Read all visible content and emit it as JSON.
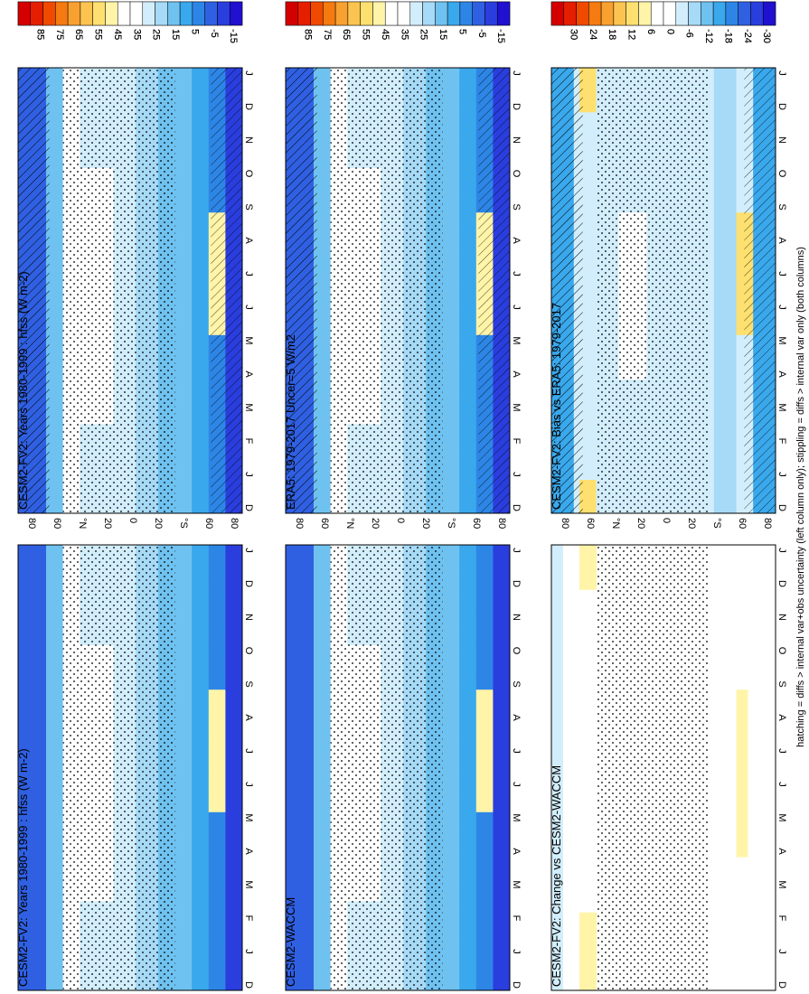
{
  "footnote": "hatching = diffs > internal var+obs uncertainty (left column only); stippling = diffs > internal var only (both columns)",
  "y_tick_labels": [
    "80",
    "60",
    "°N",
    "20",
    "0",
    "20",
    "°S",
    "60",
    "80"
  ],
  "x_tick_labels": [
    "D",
    "J",
    "F",
    "M",
    "A",
    "M",
    "J",
    "J",
    "A",
    "S",
    "O",
    "N",
    "D",
    "J"
  ],
  "chart_data": [
    {
      "type": "heatmap",
      "title": "CESM2-FV2: Years 1980-1999 : hfss (W m",
      "title_sup": "-2",
      "title_tail": ")",
      "x_tick_labels": [
        "D",
        "J",
        "F",
        "M",
        "A",
        "M",
        "J",
        "J",
        "A",
        "S",
        "O",
        "N",
        "D",
        "J"
      ],
      "y_tick_labels": [
        "80",
        "60",
        "°N",
        "20",
        "0",
        "20",
        "°S",
        "60",
        "80"
      ],
      "colorbar_labels": [
        "85",
        "75",
        "65",
        "55",
        "45",
        "35",
        "25",
        "15",
        "5",
        "-5",
        "-15"
      ],
      "hatching": true,
      "stippling": true
    },
    {
      "type": "heatmap",
      "title": "CESM2-FV2: Years 1980-1999 : hfss (W m",
      "title_sup": "-2",
      "title_tail": ")",
      "x_tick_labels": [
        "D",
        "J",
        "F",
        "M",
        "A",
        "M",
        "J",
        "J",
        "A",
        "S",
        "O",
        "N",
        "D",
        "J"
      ],
      "y_tick_labels": [
        "80",
        "60",
        "°N",
        "20",
        "0",
        "20",
        "°S",
        "60",
        "80"
      ],
      "colorbar_labels": [
        "85",
        "75",
        "65",
        "55",
        "45",
        "35",
        "25",
        "15",
        "5",
        "-5",
        "-15"
      ],
      "hatching": false,
      "stippling": true
    },
    {
      "type": "heatmap",
      "title": "ERA5: 1979-2017 Uncer=5 W/m2",
      "x_tick_labels": [
        "D",
        "J",
        "F",
        "M",
        "A",
        "M",
        "J",
        "J",
        "A",
        "S",
        "O",
        "N",
        "D",
        "J"
      ],
      "y_tick_labels": [
        "80",
        "60",
        "°N",
        "20",
        "0",
        "20",
        "°S",
        "60",
        "80"
      ],
      "colorbar_labels": [
        "85",
        "75",
        "65",
        "55",
        "45",
        "35",
        "25",
        "15",
        "5",
        "-5",
        "-15"
      ],
      "hatching": true,
      "stippling": true
    },
    {
      "type": "heatmap",
      "title": "CESM2-WACCM",
      "x_tick_labels": [
        "D",
        "J",
        "F",
        "M",
        "A",
        "M",
        "J",
        "J",
        "A",
        "S",
        "O",
        "N",
        "D",
        "J"
      ],
      "y_tick_labels": [
        "80",
        "60",
        "°N",
        "20",
        "0",
        "20",
        "°S",
        "60",
        "80"
      ],
      "colorbar_labels": [
        "85",
        "75",
        "65",
        "55",
        "45",
        "35",
        "25",
        "15",
        "5",
        "-5",
        "-15"
      ],
      "hatching": false,
      "stippling": true
    },
    {
      "type": "heatmap",
      "title": "CESM2-FV2: Bias vs ERA5: 1979-2017",
      "x_tick_labels": [
        "D",
        "J",
        "F",
        "M",
        "A",
        "M",
        "J",
        "J",
        "A",
        "S",
        "O",
        "N",
        "D",
        "J"
      ],
      "y_tick_labels": [
        "80",
        "60",
        "°N",
        "20",
        "0",
        "20",
        "°S",
        "60",
        "80"
      ],
      "colorbar_labels": [
        "30",
        "24",
        "18",
        "12",
        "6",
        "0",
        "-6",
        "-12",
        "-18",
        "-24",
        "-30"
      ],
      "hatching": true,
      "stippling": true
    },
    {
      "type": "heatmap",
      "title": "CESM2-FV2: Change vs CESM2-WACCM",
      "x_tick_labels": [
        "D",
        "J",
        "F",
        "M",
        "A",
        "M",
        "J",
        "J",
        "A",
        "S",
        "O",
        "N",
        "D",
        "J"
      ],
      "y_tick_labels": [
        "80",
        "60",
        "°N",
        "20",
        "0",
        "20",
        "°S",
        "60",
        "80"
      ],
      "colorbar_labels": [
        "30",
        "24",
        "18",
        "12",
        "6",
        "0",
        "-6",
        "-12",
        "-18",
        "-24",
        "-30"
      ],
      "hatching": false,
      "stippling": true
    }
  ],
  "colorbar_colors": [
    "#d40000",
    "#e61e00",
    "#f04a00",
    "#f57a10",
    "#f8a030",
    "#fbc450",
    "#fde070",
    "#fff4a8",
    "#ffffff",
    "#ffffff",
    "#d2eefc",
    "#a6daf6",
    "#6fc2f0",
    "#3aa8ec",
    "#2d86e6",
    "#3060e2",
    "#2a3ede",
    "#2010d0"
  ]
}
